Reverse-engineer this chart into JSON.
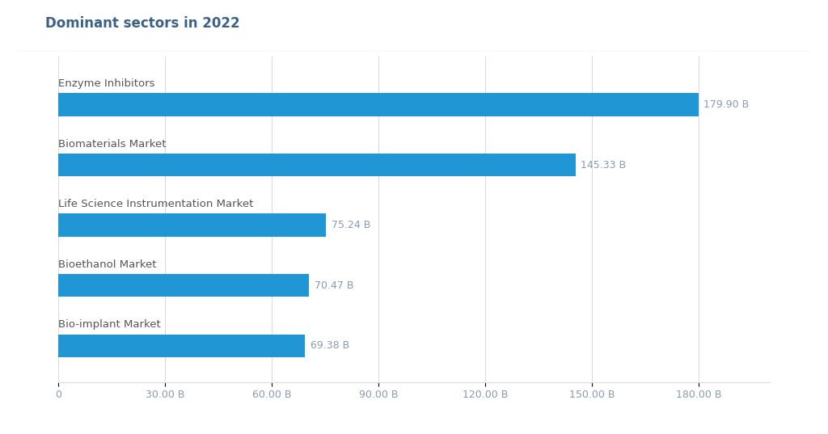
{
  "title": "Dominant sectors in 2022",
  "categories": [
    "Bio-implant Market",
    "Bioethanol Market",
    "Life Science Instrumentation Market",
    "Biomaterials Market",
    "Enzyme Inhibitors"
  ],
  "values": [
    69.38,
    70.47,
    75.24,
    145.33,
    179.9
  ],
  "labels": [
    "69.38 B",
    "70.47 B",
    "75.24 B",
    "145.33 B",
    "179.90 B"
  ],
  "bar_color": "#2196d4",
  "background_color": "#ffffff",
  "plot_bg_color": "#ffffff",
  "title_fontsize": 12,
  "label_fontsize": 9,
  "tick_fontsize": 9,
  "category_fontsize": 9.5,
  "xlim": [
    0,
    200
  ],
  "xticks": [
    0,
    30,
    60,
    90,
    120,
    150,
    180
  ],
  "xtick_labels": [
    "0",
    "30.00 B",
    "60.00 B",
    "90.00 B",
    "120.00 B",
    "150.00 B",
    "180.00 B"
  ],
  "grid_color": "#d8dce0",
  "title_color": "#3a6186",
  "label_color": "#8a9ab0",
  "category_color": "#555555",
  "outer_bg": "#ffffff",
  "border_color": "#d8dce0"
}
